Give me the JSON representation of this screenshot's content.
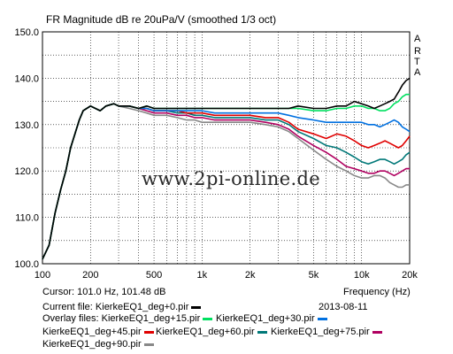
{
  "chart_data": {
    "type": "line",
    "title": "FR Magnitude dB re 20uPa/V (smoothed 1/3 oct)",
    "xscale": "log",
    "xlim": [
      100,
      20000
    ],
    "ylim": [
      100,
      150
    ],
    "grid": true,
    "xticks": [
      {
        "v": 100,
        "l": "100"
      },
      {
        "v": 200,
        "l": "200"
      },
      {
        "v": 500,
        "l": "500"
      },
      {
        "v": 1000,
        "l": "1k"
      },
      {
        "v": 2000,
        "l": "2k"
      },
      {
        "v": 5000,
        "l": "5k"
      },
      {
        "v": 10000,
        "l": "10k"
      },
      {
        "v": 20000,
        "l": "20k"
      }
    ],
    "yticks": [
      {
        "v": 100,
        "l": "100.0"
      },
      {
        "v": 110,
        "l": "110.0"
      },
      {
        "v": 120,
        "l": "120.0"
      },
      {
        "v": 130,
        "l": "130.0"
      },
      {
        "v": 140,
        "l": "140.0"
      },
      {
        "v": 150,
        "l": "150.0"
      }
    ],
    "xlabel": "Frequency (Hz)",
    "x": [
      100,
      110,
      120,
      130,
      140,
      150,
      170,
      180,
      200,
      230,
      250,
      280,
      300,
      350,
      400,
      450,
      500,
      600,
      700,
      800,
      900,
      1000,
      1200,
      1500,
      2000,
      2500,
      3000,
      3500,
      4000,
      5000,
      6000,
      7000,
      8000,
      9000,
      10000,
      11000,
      12000,
      13000,
      14000,
      15000,
      16000,
      17000,
      18000,
      19000,
      20000
    ],
    "series": [
      {
        "name": "KierkeEQ1_deg+0.pir",
        "color": "#000000",
        "values": [
          101,
          104,
          111,
          116,
          120,
          125,
          131,
          133,
          134,
          133,
          134,
          134.5,
          134,
          134,
          133.5,
          134,
          133.5,
          133.5,
          133.5,
          133.5,
          133.5,
          133.5,
          133.5,
          133.5,
          133.5,
          133.5,
          133.5,
          133.5,
          134,
          133.5,
          133.5,
          134,
          134,
          135,
          134.5,
          134,
          133.5,
          134,
          134.5,
          135,
          135.5,
          137,
          138.5,
          139.5,
          140
        ]
      },
      {
        "name": "KierkeEQ1_deg+15.pir",
        "color": "#00e060",
        "values": [
          101,
          104,
          111,
          116,
          120,
          125,
          131,
          133,
          134,
          133,
          134,
          134.5,
          134,
          134,
          133.5,
          134,
          133.5,
          133.5,
          133.5,
          133.5,
          133.5,
          133.5,
          133.5,
          133.5,
          133.5,
          133.5,
          133.5,
          133.5,
          133.5,
          133,
          133,
          133.5,
          133.5,
          134,
          134,
          133.5,
          133.5,
          133,
          133,
          133.5,
          134.5,
          135,
          136,
          136.5,
          136.5
        ]
      },
      {
        "name": "KierkeEQ1_deg+30.pir",
        "color": "#0070e0",
        "values": [
          101,
          104,
          111,
          116,
          120,
          125,
          131,
          133,
          134,
          133,
          134,
          134.5,
          134,
          134,
          133.5,
          133.5,
          133,
          133,
          133,
          133,
          133,
          133,
          132.5,
          132.5,
          132.5,
          132.5,
          132.5,
          132,
          131.5,
          131,
          130.5,
          130.5,
          130.5,
          130.5,
          130.5,
          130,
          130,
          129.5,
          130,
          130.5,
          131,
          130.5,
          129.5,
          129,
          128.5
        ]
      },
      {
        "name": "KierkeEQ1_deg+45.pir",
        "color": "#e00000",
        "values": [
          101,
          104,
          111,
          116,
          120,
          125,
          131,
          133,
          134,
          133,
          134,
          134.5,
          134,
          134,
          133.5,
          133.5,
          133,
          133,
          133,
          132.5,
          132.5,
          132.5,
          132,
          132,
          132,
          131.5,
          131.5,
          130.5,
          129,
          128,
          127,
          128,
          127.5,
          126.5,
          125.5,
          125,
          125.5,
          126,
          126.5,
          126,
          125.5,
          125,
          125.5,
          126.5,
          127.5
        ]
      },
      {
        "name": "KierkeEQ1_deg+60.pir",
        "color": "#007878",
        "values": [
          101,
          104,
          111,
          116,
          120,
          125,
          131,
          133,
          134,
          133,
          134,
          134.5,
          134,
          134,
          133.5,
          133.5,
          133,
          133,
          132.5,
          132.5,
          132,
          132,
          131.5,
          131.5,
          131.5,
          131,
          131,
          130,
          128.5,
          127,
          125.5,
          125,
          124,
          123,
          122,
          121.5,
          122,
          122.5,
          122.5,
          122,
          121.5,
          122,
          122.5,
          123.5,
          124
        ]
      },
      {
        "name": "KierkeEQ1_deg+75.pir",
        "color": "#b00060",
        "values": [
          101,
          104,
          111,
          116,
          120,
          125,
          131,
          133,
          134,
          133,
          134,
          134.5,
          134,
          134,
          133.5,
          133,
          132.5,
          132.5,
          132,
          132,
          131.5,
          131.5,
          131,
          131,
          131,
          130.5,
          130,
          129,
          127.5,
          125.5,
          124,
          122.5,
          121,
          120.5,
          120,
          119.5,
          119.5,
          120,
          120,
          119.5,
          119,
          119.5,
          120,
          120.5,
          120.5
        ]
      },
      {
        "name": "KierkeEQ1_deg+90.pir",
        "color": "#888888",
        "values": [
          101,
          104,
          111,
          116,
          120,
          125,
          131,
          133,
          134,
          133,
          134,
          134.5,
          134,
          133.5,
          133,
          132.5,
          132,
          132,
          131.5,
          131,
          131,
          130.5,
          130.5,
          130.5,
          130.5,
          130,
          129.5,
          128.5,
          127,
          124.5,
          122.5,
          121,
          120,
          119,
          118.5,
          118.5,
          119,
          119,
          118.5,
          117.5,
          117,
          116.5,
          116.5,
          117,
          117
        ]
      }
    ]
  },
  "arta_label": [
    "A",
    "R",
    "T",
    "A"
  ],
  "watermark": "www.2pi-online.de",
  "info": {
    "cursor": "Cursor: 101.0 Hz, 101.48 dB",
    "frequency_label": "Frequency (Hz)",
    "current_file_label": "Current file: KierkeEQ1_deg+0.pir",
    "date": "2013-08-11",
    "overlay_prefix": "Overlay files: KierkeEQ1_deg+15.pir",
    "overlay_30": "KierkeEQ1_deg+30.pir",
    "overlay_45": "KierkeEQ1_deg+45.pir",
    "overlay_60": "KierkeEQ1_deg+60.pir",
    "overlay_75": "KierkeEQ1_deg+75.pir",
    "overlay_90": "KierkeEQ1_deg+90.pir"
  }
}
